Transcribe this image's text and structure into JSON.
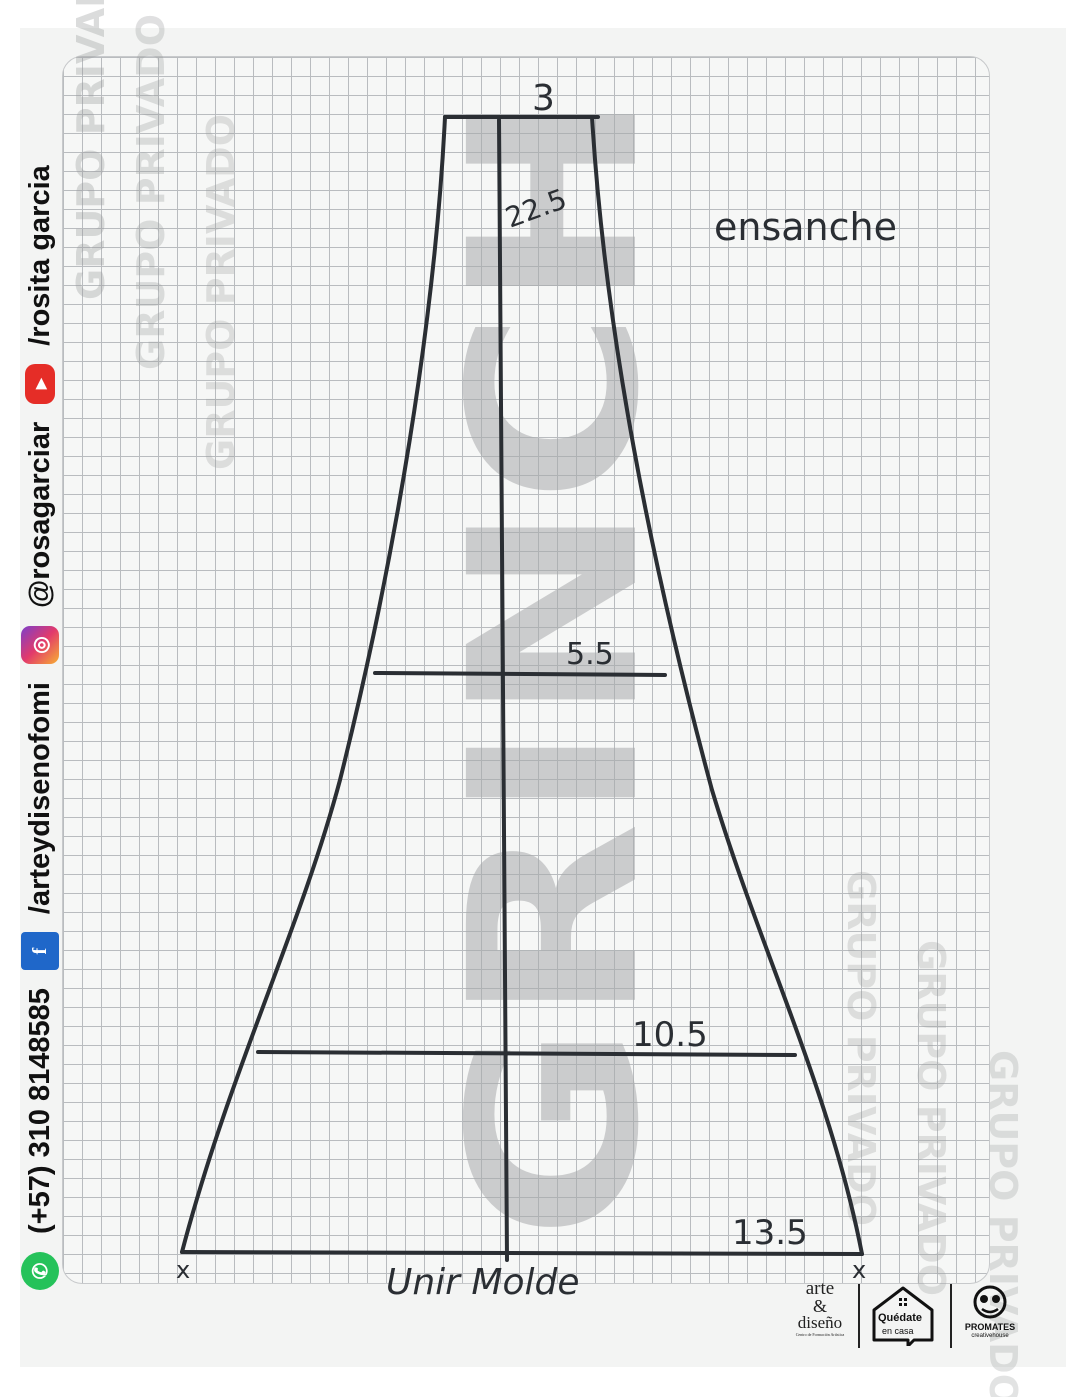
{
  "sidebar": {
    "phone": "(+57) 310 8148585",
    "facebook": "/arteydisenofomi",
    "instagram": "@rosagarciar",
    "youtube": "/rosita garcia"
  },
  "icons": {
    "whatsapp": "whatsapp-icon",
    "facebook": "facebook-icon",
    "instagram": "instagram-icon",
    "youtube": "youtube-icon"
  },
  "watermark": {
    "main": "GRINCH",
    "band": "GRUPO PRIVADO"
  },
  "pattern": {
    "title": "ensanche",
    "measure_top": "3",
    "measure_length": "22.5",
    "measure_mid": "5.5",
    "measure_lower": "10.5",
    "measure_bottom": "13.5",
    "corner_left": "x",
    "corner_right": "x",
    "join_note": "Unir Molde"
  },
  "logos": {
    "arte_line1": "arte",
    "arte_line2": "&",
    "arte_line3": "diseño",
    "arte_tagline": "Centro de Formación Artística",
    "house_line1": "Quédate",
    "house_line2": "en casa",
    "promates": "PROMATES",
    "promates_sub": "creativehouse"
  },
  "colors": {
    "ink": "#2a2e33",
    "grid": "#b9bcbf",
    "watermark": "#a8aaab",
    "whatsapp": "#25c25a",
    "facebook": "#1f67c9",
    "youtube": "#e52d27"
  }
}
